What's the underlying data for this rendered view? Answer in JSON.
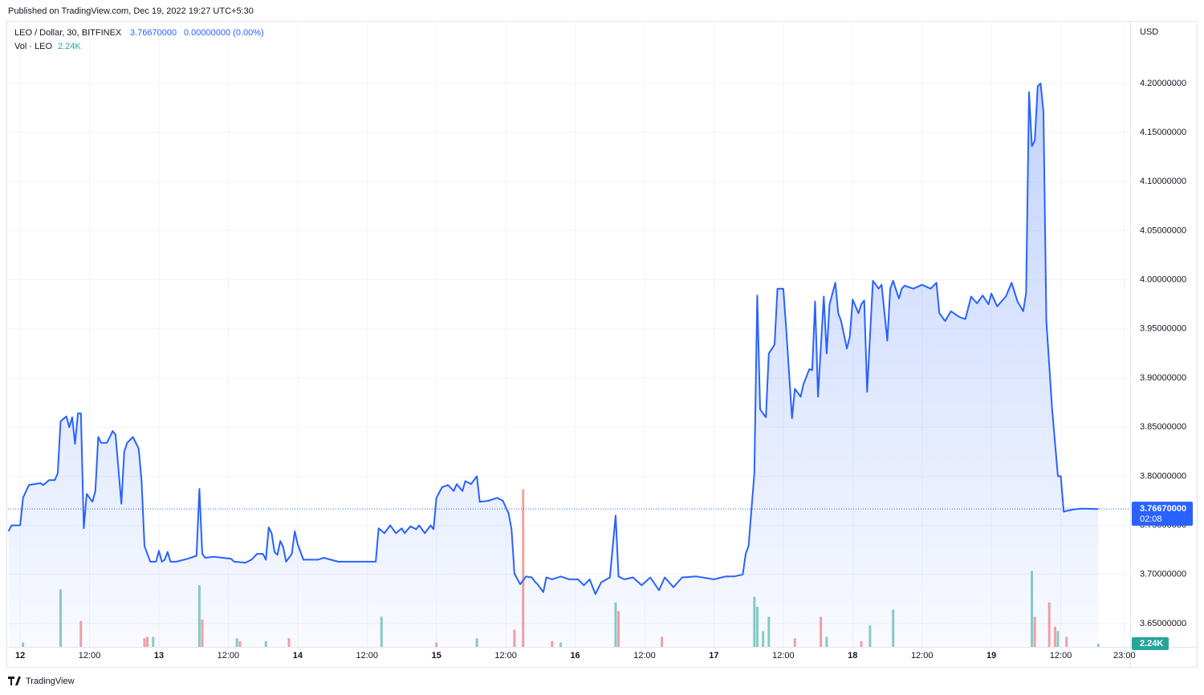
{
  "header": {
    "published": "Published on TradingView.com, Dec 19, 2022 19:27 UTC+5:30"
  },
  "footer": {
    "brand": "TradingView"
  },
  "chart_data": {
    "type": "area",
    "title": "LEO / Dollar, 30, BITFINEX",
    "last_price": {
      "value": 3.7667,
      "label": "3.76670000"
    },
    "change": "0.00000000 (0.00%)",
    "countdown": "02:08",
    "currency": "USD",
    "color": "#2962ff",
    "grid": true,
    "x": [
      -2,
      -1.5,
      0,
      0.5,
      1.5,
      3.5,
      4,
      5,
      6,
      6.5,
      7,
      8,
      8.5,
      9,
      9.5,
      10,
      10.5,
      11,
      11.5,
      12,
      12.5,
      13,
      13.5,
      14,
      15,
      16,
      16.5,
      17.5,
      18,
      18.5,
      19.5,
      20.5,
      21,
      21.5,
      22.5,
      23.5,
      24,
      24.5,
      25,
      25.5,
      26,
      27,
      29,
      30.5,
      31,
      31.5,
      32,
      33.5,
      36.5,
      37,
      39,
      40,
      41,
      42,
      42.5,
      43,
      43.5,
      44,
      44.5,
      45,
      45.5,
      46,
      47,
      47.5,
      48,
      49,
      51.5,
      52.5,
      55,
      57.5,
      61.5,
      62,
      63,
      64,
      65,
      66,
      66.5,
      67.5,
      68.5,
      69,
      70,
      71,
      71.5,
      72,
      73,
      74,
      75,
      75.5,
      76.5,
      77,
      78,
      79,
      79.5,
      81,
      82.5,
      83.5,
      84.5,
      85,
      85.5,
      86.5,
      87.5,
      88.5,
      89,
      89.5,
      90.5,
      91,
      92,
      93.5,
      95,
      96.5,
      97.5,
      98.5,
      99.5,
      100.5,
      102,
      103,
      103.5,
      104.5,
      106,
      107.5,
      109,
      110.5,
      111.5,
      113,
      114.5,
      117,
      120,
      122,
      123.5,
      125,
      125.5,
      126,
      127,
      127.5,
      128,
      129,
      129.5,
      130.5,
      131,
      132,
      132.5,
      133.5,
      134,
      135,
      135.5,
      136.5,
      137,
      137.5,
      138,
      139,
      139.5,
      140,
      141,
      141.5,
      142,
      143,
      143.5,
      144,
      145,
      145.5,
      146,
      146.5,
      147.5,
      148.5,
      149,
      150,
      150.5,
      151,
      152,
      152.5,
      153,
      154.5,
      156,
      157.5,
      158.5,
      159,
      160,
      161,
      162.5,
      163.5,
      164.5,
      165.5,
      166.5,
      167.5,
      168,
      169,
      170.5,
      171.5,
      172.5,
      173.5,
      174,
      174.5,
      175,
      175.5,
      176,
      176.5,
      177,
      177.5,
      178.5,
      179.5,
      180,
      180.5,
      182,
      183.5,
      186.5
    ],
    "values": [
      3.744,
      3.75,
      3.75,
      3.778,
      3.791,
      3.793,
      3.791,
      3.796,
      3.796,
      3.803,
      3.856,
      3.861,
      3.85,
      3.86,
      3.833,
      3.864,
      3.864,
      3.747,
      3.782,
      3.778,
      3.774,
      3.785,
      3.84,
      3.834,
      3.834,
      3.846,
      3.842,
      3.772,
      3.825,
      3.834,
      3.84,
      3.828,
      3.795,
      3.729,
      3.713,
      3.713,
      3.724,
      3.713,
      3.715,
      3.723,
      3.713,
      3.713,
      3.716,
      3.719,
      3.787,
      3.721,
      3.717,
      3.718,
      3.716,
      3.713,
      3.712,
      3.715,
      3.721,
      3.721,
      3.715,
      3.748,
      3.742,
      3.723,
      3.72,
      3.734,
      3.728,
      3.713,
      3.721,
      3.744,
      3.731,
      3.715,
      3.715,
      3.717,
      3.713,
      3.713,
      3.713,
      3.747,
      3.742,
      3.75,
      3.742,
      3.747,
      3.742,
      3.749,
      3.746,
      3.75,
      3.742,
      3.75,
      3.746,
      3.778,
      3.789,
      3.791,
      3.785,
      3.792,
      3.785,
      3.795,
      3.792,
      3.8,
      3.774,
      3.775,
      3.778,
      3.775,
      3.762,
      3.746,
      3.701,
      3.69,
      3.698,
      3.697,
      3.693,
      3.69,
      3.682,
      3.697,
      3.695,
      3.698,
      3.695,
      3.695,
      3.689,
      3.695,
      3.68,
      3.692,
      3.697,
      3.76,
      3.698,
      3.695,
      3.697,
      3.689,
      3.697,
      3.684,
      3.697,
      3.687,
      3.697,
      3.698,
      3.695,
      3.698,
      3.698,
      3.7,
      3.721,
      3.729,
      3.803,
      3.984,
      3.868,
      3.86,
      3.925,
      3.934,
      3.991,
      3.991,
      3.95,
      3.859,
      3.889,
      3.881,
      3.894,
      3.909,
      3.908,
      3.978,
      3.881,
      3.983,
      3.925,
      3.975,
      3.997,
      3.966,
      3.958,
      3.93,
      3.942,
      3.98,
      3.966,
      3.975,
      3.979,
      3.886,
      3.999,
      3.991,
      3.995,
      3.938,
      3.991,
      3.999,
      3.981,
      3.991,
      3.994,
      3.991,
      3.995,
      3.991,
      3.997,
      3.966,
      3.958,
      3.968,
      3.962,
      3.96,
      3.983,
      3.976,
      3.984,
      3.975,
      3.986,
      3.973,
      3.983,
      3.997,
      3.978,
      3.968,
      3.987,
      4.191,
      4.136,
      4.142,
      4.197,
      4.2,
      4.171,
      3.958,
      3.868,
      3.8,
      3.8,
      3.764,
      3.766,
      3.767,
      3.7667
    ],
    "xlim": [
      -2.1,
      192
    ],
    "xticks": [
      {
        "value": 0,
        "label": "12"
      },
      {
        "value": 12,
        "label": "12:00"
      },
      {
        "value": 24,
        "label": "13"
      },
      {
        "value": 36,
        "label": "12:00"
      },
      {
        "value": 48,
        "label": "14"
      },
      {
        "value": 60,
        "label": "12:00"
      },
      {
        "value": 72,
        "label": "15"
      },
      {
        "value": 84,
        "label": "12:00"
      },
      {
        "value": 96,
        "label": "16"
      },
      {
        "value": 108,
        "label": "12:00"
      },
      {
        "value": 120,
        "label": "17"
      },
      {
        "value": 132,
        "label": "12:00"
      },
      {
        "value": 144,
        "label": "18"
      },
      {
        "value": 156,
        "label": "12:00"
      },
      {
        "value": 168,
        "label": "19"
      },
      {
        "value": 180,
        "label": "12:00"
      },
      {
        "value": 191,
        "label": "23:00"
      }
    ],
    "ylim": [
      3.6263,
      4.262
    ],
    "yticks": [
      {
        "value": 3.65,
        "label": "3.65000000"
      },
      {
        "value": 3.7,
        "label": "3.70000000"
      },
      {
        "value": 3.75,
        "label": "3.75000000"
      },
      {
        "value": 3.8,
        "label": "3.80000000"
      },
      {
        "value": 3.85,
        "label": "3.85000000"
      },
      {
        "value": 3.9,
        "label": "3.90000000"
      },
      {
        "value": 3.95,
        "label": "3.95000000"
      },
      {
        "value": 4.0,
        "label": "4.00000000"
      },
      {
        "value": 4.05,
        "label": "4.05000000"
      },
      {
        "value": 4.1,
        "label": "4.10000000"
      },
      {
        "value": 4.15,
        "label": "4.15000000"
      },
      {
        "value": 4.2,
        "label": "4.20000000"
      }
    ],
    "volume": {
      "name": "Vol · LEO",
      "last_label": "2.24K",
      "vlim": [
        0,
        168
      ],
      "series": [
        {
          "color": "#26a69a",
          "x": [
            0.5,
            7,
            23,
            31,
            37.5,
            42.5,
            62.5,
            79,
            93.5,
            103,
            127,
            127.5,
            128.5,
            129.5,
            139.5,
            147,
            151,
            175,
            179.5,
            186.5
          ],
          "values": [
            3,
            40,
            7,
            43,
            6,
            4,
            21,
            6,
            3,
            31,
            35,
            28,
            11,
            21,
            7,
            15,
            26,
            53,
            11,
            2.24
          ]
        },
        {
          "color": "#ef5350",
          "x": [
            10.5,
            21.5,
            22,
            31.5,
            38,
            46.5,
            72,
            85.5,
            87,
            92,
            103.5,
            111,
            134,
            138.5,
            145.5,
            175.5,
            178,
            179,
            181
          ],
          "values": [
            18,
            6,
            7,
            19,
            4,
            6,
            3,
            12,
            110,
            4,
            25,
            7,
            6,
            21,
            4,
            21,
            31,
            14,
            7
          ]
        }
      ]
    }
  }
}
